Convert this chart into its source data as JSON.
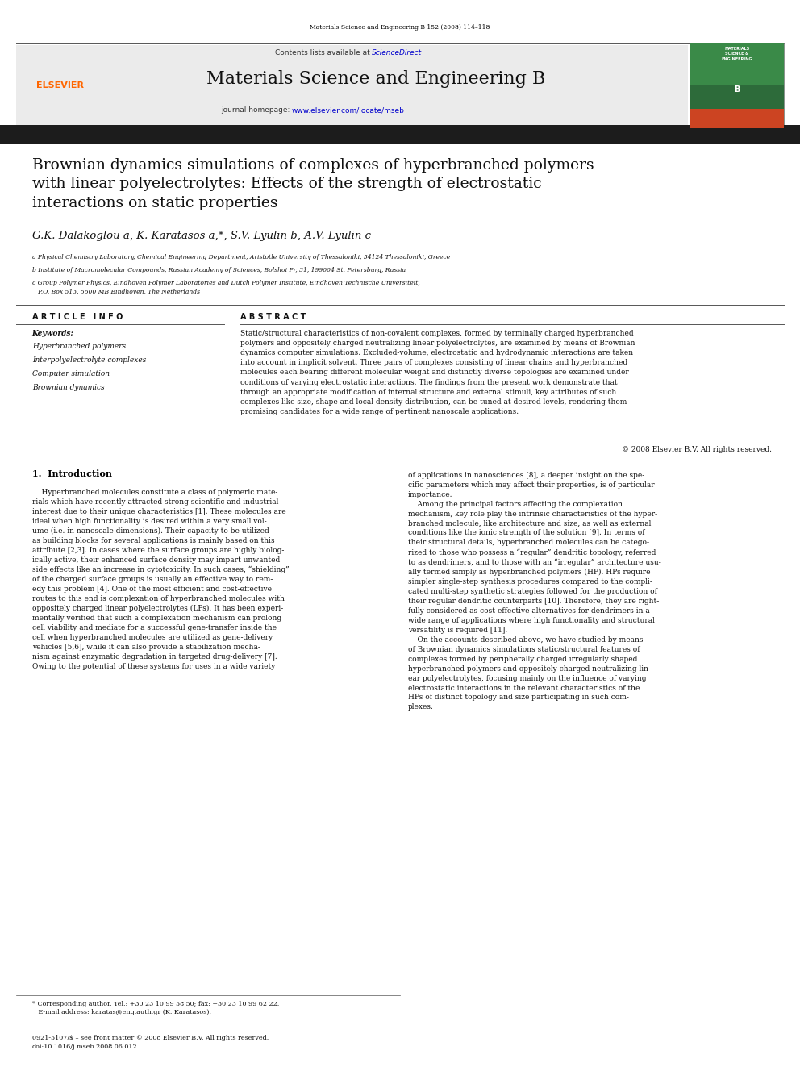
{
  "page_width": 9.92,
  "page_height": 13.23,
  "bg_color": "#ffffff",
  "top_journal_ref": "Materials Science and Engineering B 152 (2008) 114–118",
  "header_bg": "#e8e8e8",
  "header_contents_text": "Contents lists available at ",
  "header_sciencedirect": "ScienceDirect",
  "header_journal_name": "Materials Science and Engineering B",
  "header_homepage_text": "journal homepage: ",
  "header_homepage_url": "www.elsevier.com/locate/mseb",
  "dark_bar_color": "#1a1a1a",
  "title": "Brownian dynamics simulations of complexes of hyperbranched polymers\nwith linear polyelectrolytes: Effects of the strength of electrostatic\ninteractions on static properties",
  "authors": "G.K. Dalakoglou a, K. Karatasos a,*, S.V. Lyulin b, A.V. Lyulin c",
  "affil_a": "a Physical Chemistry Laboratory, Chemical Engineering Department, Aristotle University of Thessaloniki, 54124 Thessaloniki, Greece",
  "affil_b": "b Institute of Macromolecular Compounds, Russian Academy of Sciences, Bolshoi Pr, 31, 199004 St. Petersburg, Russia",
  "affil_c": "c Group Polymer Physics, Eindhoven Polymer Laboratories and Dutch Polymer Institute, Eindhoven Technische Universiteit,\n   P.O. Box 513, 5600 MB Eindhoven, The Netherlands",
  "article_info_header": "A R T I C L E   I N F O",
  "abstract_header": "A B S T R A C T",
  "keywords_label": "Keywords:",
  "keywords": [
    "Hyperbranched polymers",
    "Interpolyelectrolyte complexes",
    "Computer simulation",
    "Brownian dynamics"
  ],
  "abstract_text": "Static/structural characteristics of non-covalent complexes, formed by terminally charged hyperbranched\npolymers and oppositely charged neutralizing linear polyelectrolytes, are examined by means of Brownian\ndynamics computer simulations. Excluded-volume, electrostatic and hydrodynamic interactions are taken\ninto account in implicit solvent. Three pairs of complexes consisting of linear chains and hyperbranched\nmolecules each bearing different molecular weight and distinctly diverse topologies are examined under\nconditions of varying electrostatic interactions. The findings from the present work demonstrate that\nthrough an appropriate modification of internal structure and external stimuli, key attributes of such\ncomplexes like size, shape and local density distribution, can be tuned at desired levels, rendering them\npromising candidates for a wide range of pertinent nanoscale applications.",
  "copyright": "© 2008 Elsevier B.V. All rights reserved.",
  "section1_title": "1.  Introduction",
  "intro_col1": "    Hyperbranched molecules constitute a class of polymeric mate-\nrials which have recently attracted strong scientific and industrial\ninterest due to their unique characteristics [1]. These molecules are\nideal when high functionality is desired within a very small vol-\nume (i.e. in nanoscale dimensions). Their capacity to be utilized\nas building blocks for several applications is mainly based on this\nattribute [2,3]. In cases where the surface groups are highly biolog-\nically active, their enhanced surface density may impart unwanted\nside effects like an increase in cytotoxicity. In such cases, “shielding”\nof the charged surface groups is usually an effective way to rem-\nedy this problem [4]. One of the most efficient and cost-effective\nroutes to this end is complexation of hyperbranched molecules with\noppositely charged linear polyelectrolytes (LPs). It has been experi-\nmentally verified that such a complexation mechanism can prolong\ncell viability and mediate for a successful gene-transfer inside the\ncell when hyperbranched molecules are utilized as gene-delivery\nvehicles [5,6], while it can also provide a stabilization mecha-\nnism against enzymatic degradation in targeted drug-delivery [7].\nOwing to the potential of these systems for uses in a wide variety",
  "intro_col2": "of applications in nanosciences [8], a deeper insight on the spe-\ncific parameters which may affect their properties, is of particular\nimportance.\n    Among the principal factors affecting the complexation\nmechanism, key role play the intrinsic characteristics of the hyper-\nbranched molecule, like architecture and size, as well as external\nconditions like the ionic strength of the solution [9]. In terms of\ntheir structural details, hyperbranched molecules can be catego-\nrized to those who possess a “regular” dendritic topology, referred\nto as dendrimers, and to those with an “irregular” architecture usu-\nally termed simply as hyperbranched polymers (HP). HPs require\nsimpler single-step synthesis procedures compared to the compli-\ncated multi-step synthetic strategies followed for the production of\ntheir regular dendritic counterparts [10]. Therefore, they are right-\nfully considered as cost-effective alternatives for dendrimers in a\nwide range of applications where high functionality and structural\nversatility is required [11].\n    On the accounts described above, we have studied by means\nof Brownian dynamics simulations static/structural features of\ncomplexes formed by peripherally charged irregularly shaped\nhyperbranched polymers and oppositely charged neutralizing lin-\near polyelectrolytes, focusing mainly on the influence of varying\nelectrostatic interactions in the relevant characteristics of the\nHPs of distinct topology and size participating in such com-\nplexes.",
  "footnote_star": "* Corresponding author. Tel.: +30 23 10 99 58 50; fax: +30 23 10 99 62 22.\n   E-mail address: karatas@eng.auth.gr (K. Karatasos).",
  "footer_text": "0921-5107/$ – see front matter © 2008 Elsevier B.V. All rights reserved.\ndoi:10.1016/j.mseb.2008.06.012",
  "elsevier_color": "#ff6600",
  "sciencedirect_color": "#ff6600",
  "link_color": "#0000cc",
  "section_title_color": "#cc0000"
}
